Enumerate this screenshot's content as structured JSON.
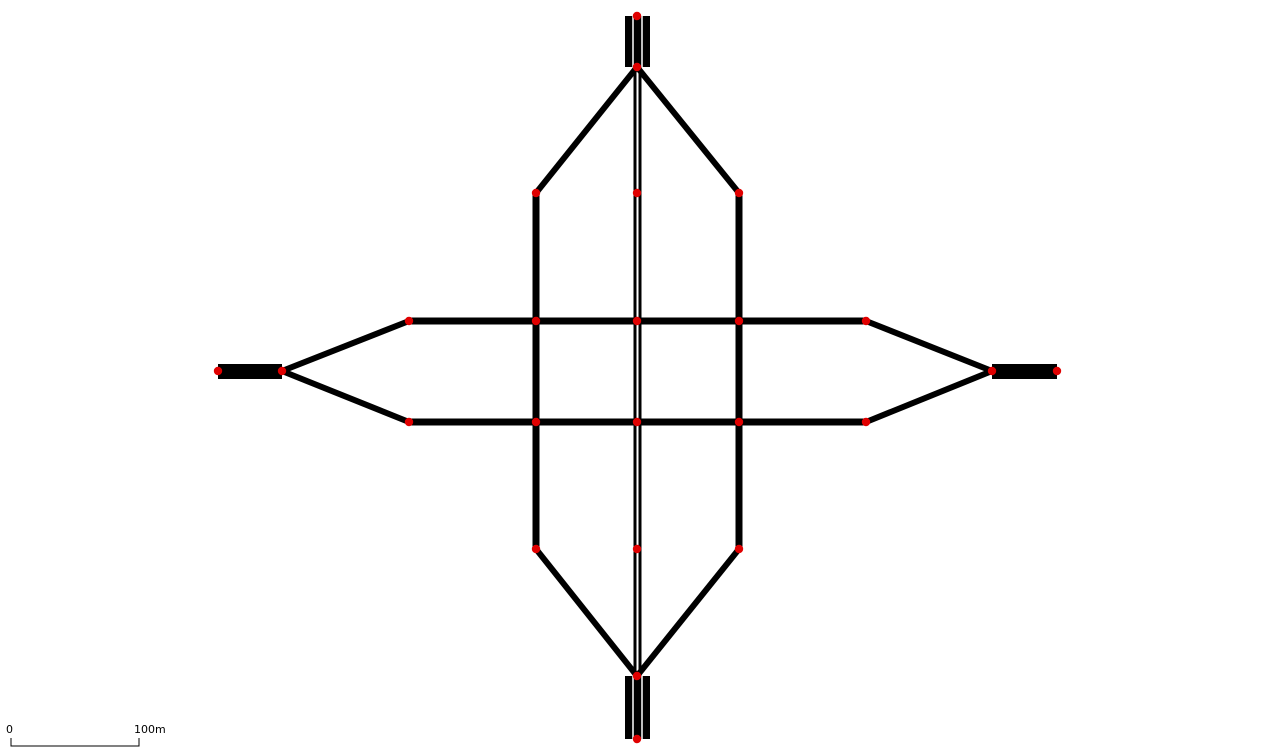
{
  "network": {
    "node_color": "#e00000",
    "edge_color": "#000000",
    "background": "#ffffff"
  },
  "scale_bar": {
    "zero_label": "0",
    "max_label": "100m"
  }
}
